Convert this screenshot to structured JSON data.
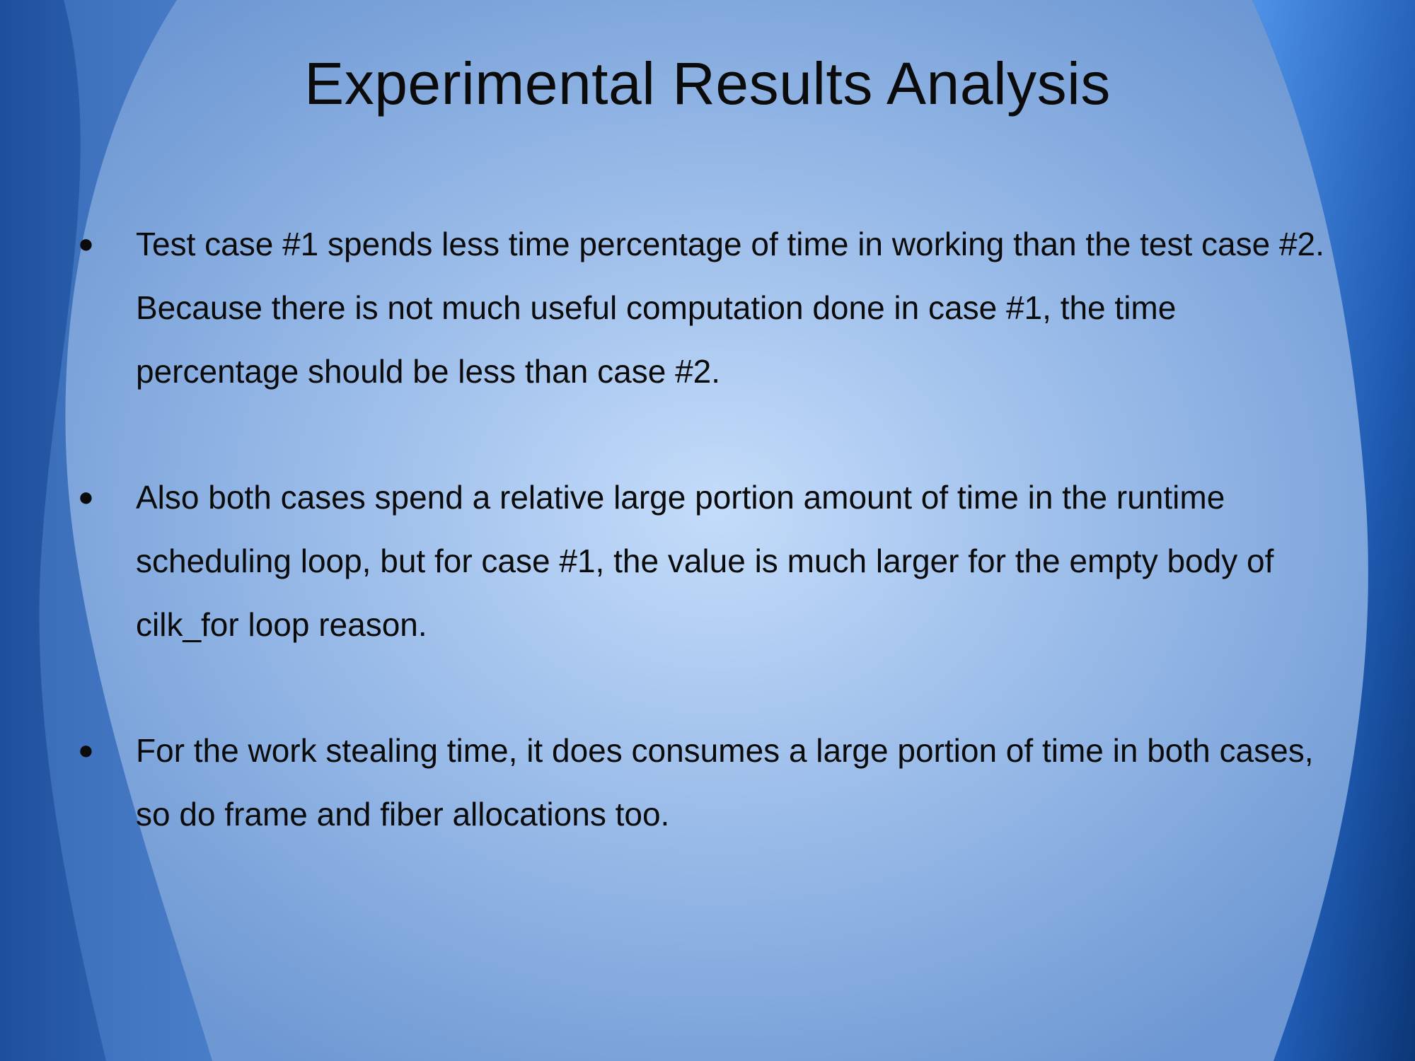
{
  "slide": {
    "title": "Experimental Results Analysis",
    "bullets": [
      {
        "marker": "●",
        "text": "Test case #1 spends less time percentage of time in working than the test case #2. Because there is not much useful computation done in case #1, the time percentage should be less than case #2."
      },
      {
        "marker": "●",
        "text": "Also both cases spend a relative large portion amount of time in the runtime scheduling loop, but for case #1, the value is much larger for the empty body of cilk_for loop reason."
      },
      {
        "marker": "●",
        "text": "For the work stealing time, it does consumes a large portion of time in both cases, so do frame and fiber allocations too."
      }
    ]
  },
  "colors": {
    "center_light": "#c4dcfa",
    "mid_blue": "#7fa7dc",
    "edge_blue": "#1f4f9b",
    "deep_blue": "#0e3777",
    "text": "#0b0b0b"
  }
}
